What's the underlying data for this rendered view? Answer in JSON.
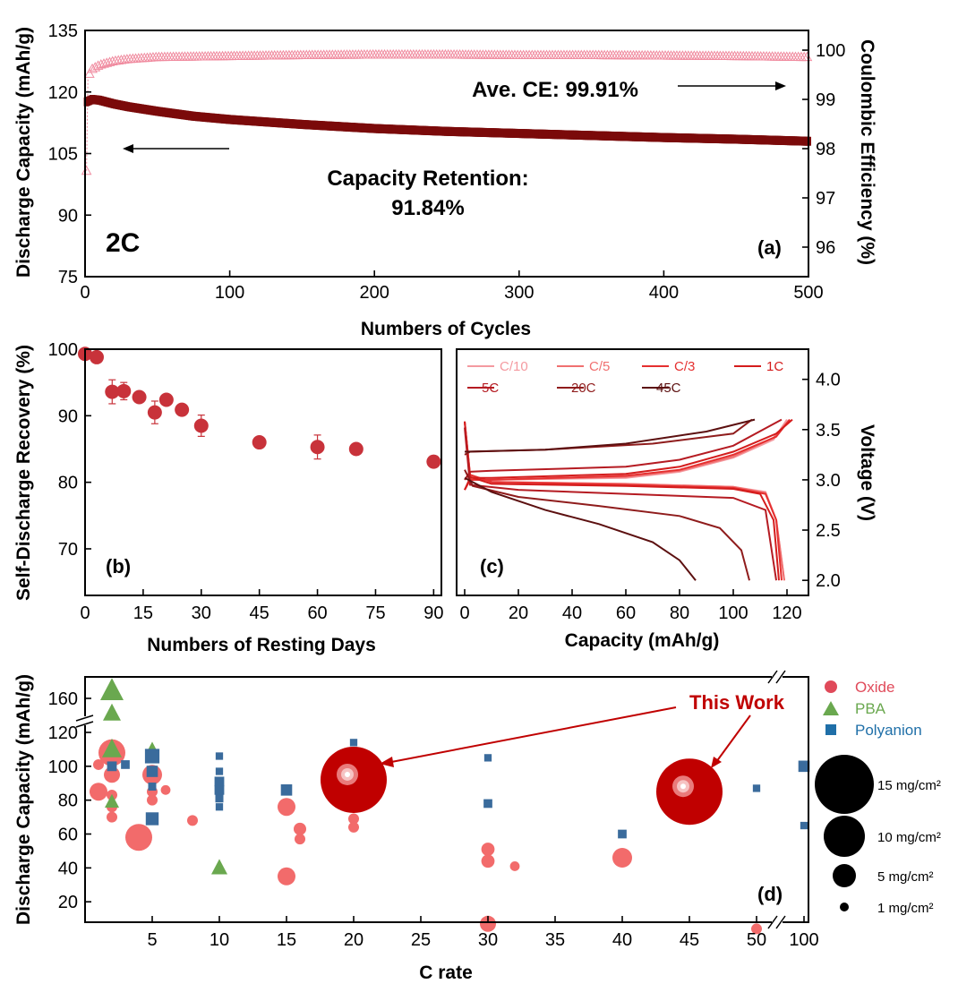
{
  "chart_data": [
    {
      "panel_label": "(a)",
      "type": "scatter",
      "xlabel": "Numbers of Cycles",
      "ylabel": "Discharge Capacity (mAh/g)",
      "y2label": "Coulombic Efficiency (%)",
      "xlim": [
        0,
        500
      ],
      "ylim": [
        75,
        135
      ],
      "y2lim": [
        95.4,
        100.4
      ],
      "xticks": [
        0,
        100,
        200,
        300,
        400,
        500
      ],
      "yticks": [
        75,
        90,
        105,
        120,
        135
      ],
      "y2ticks": [
        96,
        97,
        98,
        99,
        100
      ],
      "annotations": {
        "rate": "2C",
        "ce": "Ave. CE: 99.91%",
        "retention_line1": "Capacity Retention:",
        "retention_line2": "91.84%"
      },
      "series": [
        {
          "axis": "left",
          "color": "#7b0a0a",
          "x": [
            1,
            5,
            10,
            20,
            30,
            50,
            75,
            100,
            150,
            200,
            250,
            300,
            350,
            400,
            450,
            500
          ],
          "y": [
            117.6,
            118.2,
            118.0,
            117.1,
            116.4,
            115.3,
            114.1,
            113.3,
            112.1,
            111.1,
            110.4,
            109.9,
            109.4,
            108.9,
            108.5,
            108.0
          ]
        },
        {
          "axis": "right",
          "color": "#f08ca0",
          "x": [
            1,
            2,
            3,
            5,
            10,
            20,
            30,
            50,
            100,
            150,
            200,
            250,
            300,
            350,
            400,
            450,
            500
          ],
          "y": [
            97.55,
            99.45,
            99.52,
            99.62,
            99.7,
            99.78,
            99.82,
            99.86,
            99.88,
            99.9,
            99.91,
            99.91,
            99.9,
            99.9,
            99.89,
            99.88,
            99.86
          ]
        }
      ]
    },
    {
      "panel_label": "(b)",
      "type": "scatter",
      "xlabel": "Numbers of Resting Days",
      "ylabel": "Self-Discharge Recovery (%)",
      "xlim": [
        0,
        92
      ],
      "ylim": [
        63,
        100
      ],
      "xticks": [
        0,
        15,
        30,
        45,
        60,
        75,
        90
      ],
      "yticks": [
        70,
        80,
        90,
        100
      ],
      "color": "#c8323a",
      "x": [
        0,
        3,
        7,
        10,
        14,
        18,
        21,
        25,
        30,
        45,
        60,
        70,
        90
      ],
      "y": [
        99.3,
        98.8,
        93.6,
        93.7,
        92.8,
        90.5,
        92.4,
        90.9,
        88.5,
        86.0,
        85.3,
        85.0,
        83.1
      ],
      "err": [
        0,
        0,
        1.8,
        1.3,
        0,
        1.7,
        0,
        0,
        1.6,
        0,
        1.8,
        0,
        0
      ]
    },
    {
      "panel_label": "(c)",
      "type": "line",
      "xlabel": "Capacity (mAh/g)",
      "ylabel": "Voltage (V)",
      "xlim": [
        -3,
        128
      ],
      "ylim": [
        1.85,
        4.3
      ],
      "xticks": [
        0,
        20,
        40,
        60,
        80,
        100,
        120
      ],
      "yticks": [
        2.0,
        2.5,
        3.0,
        3.5,
        4.0
      ],
      "series": [
        {
          "name": "C/10",
          "color": "#f49aa0",
          "charge": [
            [
              0,
              2.9
            ],
            [
              2,
              3.0
            ],
            [
              10,
              3.0
            ],
            [
              60,
              3.02
            ],
            [
              80,
              3.08
            ],
            [
              100,
              3.22
            ],
            [
              115,
              3.4
            ],
            [
              120,
              3.6
            ]
          ],
          "discharge": [
            [
              0,
              3.58
            ],
            [
              2,
              3.05
            ],
            [
              10,
              2.98
            ],
            [
              60,
              2.96
            ],
            [
              100,
              2.93
            ],
            [
              112,
              2.88
            ],
            [
              116,
              2.6
            ],
            [
              119,
              2.0
            ]
          ]
        },
        {
          "name": "C/5",
          "color": "#f07070",
          "charge": [
            [
              0,
              2.9
            ],
            [
              2,
              3.0
            ],
            [
              10,
              3.0
            ],
            [
              60,
              3.03
            ],
            [
              80,
              3.09
            ],
            [
              100,
              3.23
            ],
            [
              115,
              3.42
            ],
            [
              121,
              3.6
            ]
          ],
          "discharge": [
            [
              0,
              3.58
            ],
            [
              2,
              3.05
            ],
            [
              10,
              2.98
            ],
            [
              60,
              2.96
            ],
            [
              100,
              2.93
            ],
            [
              112,
              2.87
            ],
            [
              116,
              2.6
            ],
            [
              119,
              2.0
            ]
          ]
        },
        {
          "name": "C/3",
          "color": "#e53030",
          "charge": [
            [
              0,
              2.9
            ],
            [
              2,
              3.0
            ],
            [
              10,
              3.0
            ],
            [
              60,
              3.04
            ],
            [
              80,
              3.1
            ],
            [
              100,
              3.25
            ],
            [
              116,
              3.43
            ],
            [
              121,
              3.6
            ]
          ],
          "discharge": [
            [
              0,
              3.58
            ],
            [
              2,
              3.05
            ],
            [
              10,
              2.98
            ],
            [
              60,
              2.95
            ],
            [
              100,
              2.92
            ],
            [
              112,
              2.86
            ],
            [
              116,
              2.6
            ],
            [
              118,
              2.0
            ]
          ]
        },
        {
          "name": "1C",
          "color": "#d41c1c",
          "charge": [
            [
              0,
              2.9
            ],
            [
              2,
              3.02
            ],
            [
              10,
              3.02
            ],
            [
              60,
              3.06
            ],
            [
              80,
              3.13
            ],
            [
              100,
              3.28
            ],
            [
              116,
              3.46
            ],
            [
              122,
              3.6
            ]
          ],
          "discharge": [
            [
              0,
              3.58
            ],
            [
              2,
              3.03
            ],
            [
              10,
              2.96
            ],
            [
              60,
              2.94
            ],
            [
              100,
              2.91
            ],
            [
              110,
              2.86
            ],
            [
              115,
              2.6
            ],
            [
              117,
              2.0
            ]
          ]
        },
        {
          "name": "5C",
          "color": "#b51b22",
          "charge": [
            [
              0,
              3.0
            ],
            [
              2,
              3.08
            ],
            [
              10,
              3.09
            ],
            [
              60,
              3.13
            ],
            [
              80,
              3.2
            ],
            [
              100,
              3.34
            ],
            [
              118,
              3.6
            ]
          ],
          "discharge": [
            [
              0,
              3.52
            ],
            [
              2,
              2.95
            ],
            [
              20,
              2.9
            ],
            [
              60,
              2.86
            ],
            [
              100,
              2.82
            ],
            [
              112,
              2.7
            ],
            [
              116,
              2.0
            ]
          ]
        },
        {
          "name": "20C",
          "color": "#8f1c1c",
          "charge": [
            [
              0,
              3.25
            ],
            [
              2,
              3.28
            ],
            [
              30,
              3.3
            ],
            [
              70,
              3.36
            ],
            [
              100,
              3.46
            ],
            [
              107,
              3.6
            ]
          ],
          "discharge": [
            [
              0,
              3.1
            ],
            [
              3,
              2.94
            ],
            [
              20,
              2.83
            ],
            [
              50,
              2.74
            ],
            [
              80,
              2.64
            ],
            [
              95,
              2.52
            ],
            [
              103,
              2.3
            ],
            [
              106,
              2.0
            ]
          ]
        },
        {
          "name": "45C",
          "color": "#5c1010",
          "charge": [
            [
              0,
              3.28
            ],
            [
              30,
              3.3
            ],
            [
              60,
              3.36
            ],
            [
              90,
              3.48
            ],
            [
              108,
              3.6
            ]
          ],
          "discharge": [
            [
              0,
              3.02
            ],
            [
              10,
              2.88
            ],
            [
              30,
              2.7
            ],
            [
              50,
              2.56
            ],
            [
              70,
              2.38
            ],
            [
              80,
              2.2
            ],
            [
              86,
              2.0
            ]
          ]
        }
      ]
    },
    {
      "panel_label": "(d)",
      "type": "scatter",
      "xlabel": "C rate",
      "ylabel": "Discharge Capacity (mAh/g)",
      "xticks": [
        5,
        10,
        15,
        20,
        25,
        30,
        35,
        40,
        45,
        50,
        100
      ],
      "yticks": [
        20,
        40,
        60,
        80,
        100,
        120,
        160
      ],
      "axis_breaks": "x break between 50 and 100; y break between 120 and 160",
      "annotation": "This Work",
      "legend": [
        "Oxide",
        "PBA",
        "Polyanion"
      ],
      "size_legend": [
        "15 mg/cm²",
        "10 mg/cm²",
        "5 mg/cm²",
        "1 mg/cm²"
      ],
      "size_legend_loadings": [
        15,
        10,
        5,
        1
      ],
      "series": [
        {
          "name": "Oxide",
          "color": "#f26b6b",
          "marker": "circle",
          "points": [
            [
              1,
              85,
              3.5
            ],
            [
              1,
              101,
              1.5
            ],
            [
              2,
              108,
              6
            ],
            [
              2,
              95,
              3
            ],
            [
              2,
              83,
              1.5
            ],
            [
              2,
              76,
              1.5
            ],
            [
              2,
              70,
              1.5
            ],
            [
              4,
              58,
              6
            ],
            [
              5,
              95,
              4
            ],
            [
              5,
              85,
              1.5
            ],
            [
              5,
              80,
              1.5
            ],
            [
              6,
              86,
              1.2
            ],
            [
              8,
              68,
              1.5
            ],
            [
              15,
              76,
              3.5
            ],
            [
              15,
              35,
              3.5
            ],
            [
              16,
              63,
              2
            ],
            [
              16,
              57,
              1.5
            ],
            [
              20,
              80,
              1.5
            ],
            [
              20,
              69,
              1.5
            ],
            [
              20,
              64,
              1.5
            ],
            [
              30,
              51,
              2.2
            ],
            [
              30,
              44,
              2.2
            ],
            [
              30,
              7,
              3
            ],
            [
              32,
              41,
              1.2
            ],
            [
              40,
              46,
              4
            ],
            [
              50,
              4,
              1.5
            ]
          ]
        },
        {
          "name": "PBA",
          "color": "#6aa84f",
          "marker": "triangle",
          "points": [
            [
              2,
              166,
              5
            ],
            [
              2,
              148,
              3.5
            ],
            [
              2,
              110,
              4
            ],
            [
              2,
              79,
              2.5
            ],
            [
              5,
              111,
              1.5
            ],
            [
              10,
              40,
              3
            ]
          ]
        },
        {
          "name": "Polyanion",
          "color": "#3a6b9c",
          "marker": "square",
          "points": [
            [
              2,
              100,
              1.5
            ],
            [
              3,
              101,
              1.2
            ],
            [
              5,
              106,
              3
            ],
            [
              5,
              97,
              2
            ],
            [
              5,
              88,
              1
            ],
            [
              5,
              69,
              2.5
            ],
            [
              10,
              106,
              0.8
            ],
            [
              10,
              97,
              0.8
            ],
            [
              10,
              91,
              1.5
            ],
            [
              10,
              86,
              1.5
            ],
            [
              10,
              81,
              1
            ],
            [
              10,
              76,
              0.8
            ],
            [
              15,
              86,
              2
            ],
            [
              20,
              114,
              0.8
            ],
            [
              20,
              106,
              1.2
            ],
            [
              20,
              91,
              1
            ],
            [
              30,
              105,
              0.8
            ],
            [
              30,
              78,
              1.2
            ],
            [
              40,
              60,
              1.2
            ],
            [
              50,
              87,
              0.8
            ],
            [
              100,
              100,
              2
            ],
            [
              100,
              65,
              0.8
            ]
          ]
        },
        {
          "name": "This Work",
          "color": "#c00000",
          "marker": "circle",
          "points": [
            [
              20,
              92,
              17
            ],
            [
              45,
              85,
              17
            ]
          ]
        }
      ]
    }
  ]
}
